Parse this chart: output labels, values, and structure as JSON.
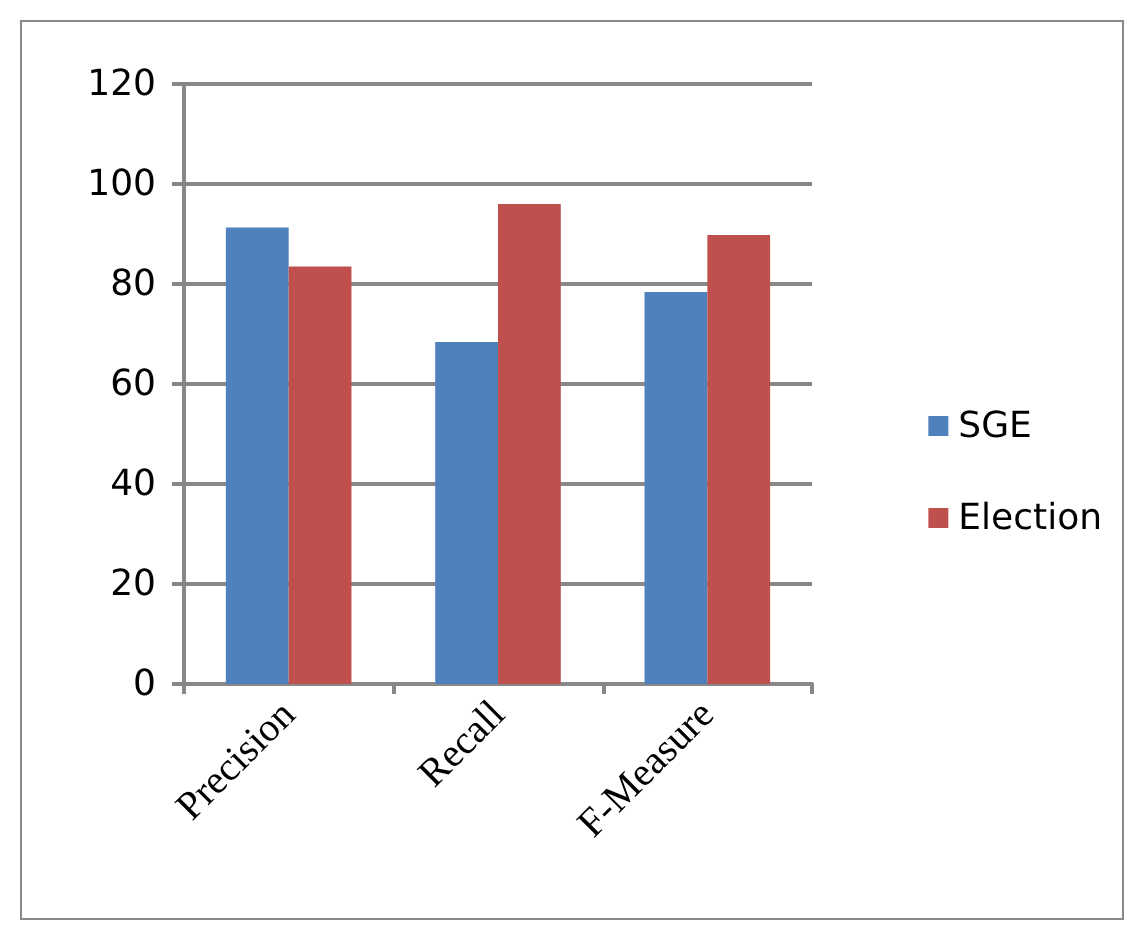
{
  "chart_data": {
    "type": "bar",
    "categories": [
      "Precision",
      "Recall",
      "F-Measure"
    ],
    "series": [
      {
        "name": "SGE",
        "color": "#4f81bd",
        "values": [
          91.3,
          68.4,
          78.4
        ]
      },
      {
        "name": "Election",
        "color": "#c0504d",
        "values": [
          83.5,
          96.0,
          89.8
        ]
      }
    ],
    "ylim": [
      0,
      120
    ],
    "yticks": [
      0,
      20,
      40,
      60,
      80,
      100,
      120
    ],
    "grid": "y",
    "legend": "right"
  }
}
